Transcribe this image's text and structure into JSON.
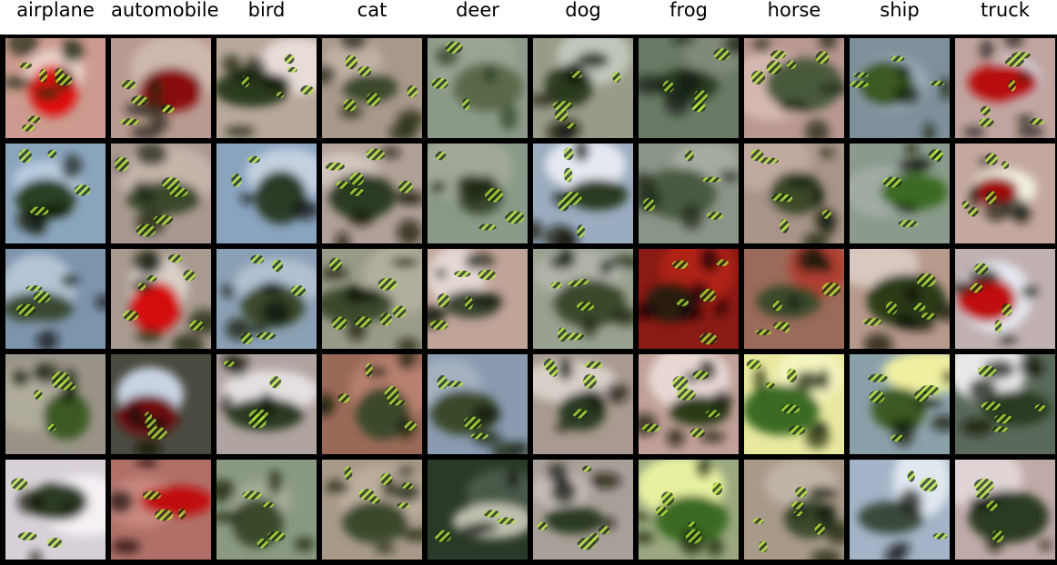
{
  "classes": [
    "airplane",
    "automobile",
    "bird",
    "cat",
    "deer",
    "dog",
    "frog",
    "horse",
    "ship",
    "truck"
  ],
  "grid": {
    "rows": 5,
    "cols": 10,
    "cells": [
      [
        {
          "bg": "#cc9a8e",
          "sky": "#e8d0c8",
          "blob": "#e01010",
          "dark": "#1a2a10",
          "spots": 6
        },
        {
          "bg": "#b89a90",
          "sky": "#cdb8ae",
          "blob": "#8a1010",
          "dark": "#1a2010",
          "spots": 5
        },
        {
          "bg": "#b8a89a",
          "sky": "#e8dcd8",
          "blob": "#2a3a1a",
          "dark": "#101808",
          "spots": 5
        },
        {
          "bg": "#a8988a",
          "sky": "#c0b0a4",
          "blob": "#3a4a2a",
          "dark": "#101808",
          "spots": 5
        },
        {
          "bg": "#8c9a8a",
          "sky": "#9aa494",
          "blob": "#5a6a4a",
          "dark": "#2a3a20",
          "spots": 3
        },
        {
          "bg": "#9a9a88",
          "sky": "#c0c8bc",
          "blob": "#2a3a1a",
          "dark": "#0a1208",
          "spots": 5
        },
        {
          "bg": "#6a7a66",
          "sky": "#808a78",
          "blob": "#2a3a22",
          "dark": "#101a0c",
          "spots": 5
        },
        {
          "bg": "#b89890",
          "sky": "#d4b8b0",
          "blob": "#4a5a3a",
          "dark": "#1a2410",
          "spots": 5
        },
        {
          "bg": "#7e909a",
          "sky": "#9aa8b4",
          "blob": "#3a5a20",
          "dark": "#101a08",
          "spots": 4
        },
        {
          "bg": "#c0a4a0",
          "sky": "#d8e0e8",
          "blob": "#b81010",
          "dark": "#1a2010",
          "spots": 6
        }
      ],
      [
        {
          "bg": "#8aa4bc",
          "sky": "#b8cce0",
          "blob": "#2a4020",
          "dark": "#0c1408",
          "spots": 4
        },
        {
          "bg": "#a89890",
          "sky": "#c4b4aa",
          "blob": "#3a4a2a",
          "dark": "#101808",
          "spots": 5
        },
        {
          "bg": "#8aa4c0",
          "sky": "#c4d0e0",
          "blob": "#2a3a28",
          "dark": "#0c1410",
          "spots": 2
        },
        {
          "bg": "#b0a098",
          "sky": "#d0c4bc",
          "blob": "#2a3a20",
          "dark": "#0a1006",
          "spots": 6
        },
        {
          "bg": "#8a9a88",
          "sky": "#a0a898",
          "blob": "#3a4a30",
          "dark": "#1a2410",
          "spots": 4
        },
        {
          "bg": "#9aacc0",
          "sky": "#e4e8f0",
          "blob": "#2a3a20",
          "dark": "#0a1006",
          "spots": 5
        },
        {
          "bg": "#8a9488",
          "sky": "#a4aca0",
          "blob": "#4a5a40",
          "dark": "#1a2414",
          "spots": 4
        },
        {
          "bg": "#a89488",
          "sky": "#c0aaa0",
          "blob": "#3a4a28",
          "dark": "#101808",
          "spots": 6
        },
        {
          "bg": "#8a9a8c",
          "sky": "#a0aca2",
          "blob": "#3a6a20",
          "dark": "#0c1408",
          "spots": 4
        },
        {
          "bg": "#c4a8a0",
          "sky": "#f0f0e0",
          "blob": "#a01010",
          "dark": "#101408",
          "spots": 5
        }
      ],
      [
        {
          "bg": "#7c94ac",
          "sky": "#b4c4d4",
          "blob": "#3a4a30",
          "dark": "#0c140c",
          "spots": 3
        },
        {
          "bg": "#a89a90",
          "sky": "#d8d0c8",
          "blob": "#d41010",
          "dark": "#101808",
          "spots": 6
        },
        {
          "bg": "#8aa0b4",
          "sky": "#b0c0d0",
          "blob": "#3a4a2a",
          "dark": "#0c1408",
          "spots": 5
        },
        {
          "bg": "#9a9a88",
          "sky": "#b0ae9c",
          "blob": "#3a4a2a",
          "dark": "#0c1206",
          "spots": 6
        },
        {
          "bg": "#c0a498",
          "sky": "#e4d8d4",
          "blob": "#3a4430",
          "dark": "#101808",
          "spots": 5
        },
        {
          "bg": "#98a090",
          "sky": "#b0b4a8",
          "blob": "#3a4a2a",
          "dark": "#101808",
          "spots": 6
        },
        {
          "bg": "#8a1a14",
          "sky": "#b02018",
          "blob": "#2a1a10",
          "dark": "#100806",
          "spots": 5
        },
        {
          "bg": "#9a6a5a",
          "sky": "#b04030",
          "blob": "#3a4a2a",
          "dark": "#101808",
          "spots": 5
        },
        {
          "bg": "#b89a8c",
          "sky": "#d8c8c0",
          "blob": "#2a3a18",
          "dark": "#0a1006",
          "spots": 5
        },
        {
          "bg": "#c0b0b0",
          "sky": "#e4e8f0",
          "blob": "#c01010",
          "dark": "#101408",
          "spots": 4
        }
      ],
      [
        {
          "bg": "#9a9488",
          "sky": "#b0ac9c",
          "blob": "#3a5a20",
          "dark": "#101a08",
          "spots": 5
        },
        {
          "bg": "#4a4a40",
          "sky": "#c8d4e4",
          "blob": "#701010",
          "dark": "#0a0e06",
          "spots": 3
        },
        {
          "bg": "#b0a4a0",
          "sky": "#e4e0e0",
          "blob": "#2a3a20",
          "dark": "#0a1006",
          "spots": 4
        },
        {
          "bg": "#9a6a58",
          "sky": "#b88070",
          "blob": "#3a4a2a",
          "dark": "#101808",
          "spots": 5
        },
        {
          "bg": "#8a9ab0",
          "sky": "#a4b0c0",
          "blob": "#3a4a2a",
          "dark": "#101808",
          "spots": 4
        },
        {
          "bg": "#a89a90",
          "sky": "#d8d0c8",
          "blob": "#2a3a20",
          "dark": "#0a1006",
          "spots": 5
        },
        {
          "bg": "#c0a098",
          "sky": "#e8d8d4",
          "blob": "#2a3a18",
          "dark": "#0a1006",
          "spots": 6
        },
        {
          "bg": "#e8e8a0",
          "sky": "#f4f4c0",
          "blob": "#3a6a20",
          "dark": "#101a08",
          "spots": 5
        },
        {
          "bg": "#8aa0a8",
          "sky": "#f0f0a0",
          "blob": "#3a5a20",
          "dark": "#0c1408",
          "spots": 5
        },
        {
          "bg": "#5a6a5a",
          "sky": "#e8e8e8",
          "blob": "#2a3a20",
          "dark": "#0a1006",
          "spots": 5
        }
      ],
      [
        {
          "bg": "#d8d0d8",
          "sky": "#f4f0f4",
          "blob": "#2a3a20",
          "dark": "#0a1006",
          "spots": 3
        },
        {
          "bg": "#b07068",
          "sky": "#c88880",
          "blob": "#c01010",
          "dark": "#100806",
          "spots": 3
        },
        {
          "bg": "#8a9a80",
          "sky": "#a4ac98",
          "blob": "#3a4a2a",
          "dark": "#101808",
          "spots": 4
        },
        {
          "bg": "#a89a88",
          "sky": "#bcae9c",
          "blob": "#3a4a2a",
          "dark": "#101808",
          "spots": 6
        },
        {
          "bg": "#2a3a28",
          "sky": "#4a5a48",
          "blob": "#c0c0b0",
          "dark": "#0a1006",
          "spots": 3
        },
        {
          "bg": "#a8a098",
          "sky": "#c4bcb4",
          "blob": "#2a3a20",
          "dark": "#0a1006",
          "spots": 5
        },
        {
          "bg": "#9aa880",
          "sky": "#e8f0a0",
          "blob": "#3a6a20",
          "dark": "#101a08",
          "spots": 5
        },
        {
          "bg": "#a89a88",
          "sky": "#c0b4a4",
          "blob": "#3a4a2a",
          "dark": "#101808",
          "spots": 6
        },
        {
          "bg": "#a4b4c8",
          "sky": "#e0e8f0",
          "blob": "#3a4a3a",
          "dark": "#0c140c",
          "spots": 3
        },
        {
          "bg": "#c0aaa8",
          "sky": "#e0d4d4",
          "blob": "#2a3a20",
          "dark": "#0a1006",
          "spots": 4
        }
      ]
    ]
  }
}
